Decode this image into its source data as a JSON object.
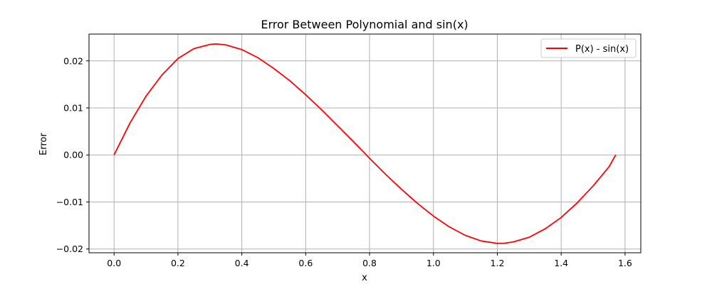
{
  "chart_data": {
    "type": "line",
    "title": "Error Between Polynomial and sin(x)",
    "xlabel": "x",
    "ylabel": "Error",
    "xlim": [
      -0.0785,
      1.6493
    ],
    "ylim": [
      -0.0208,
      0.0257
    ],
    "xticks": [
      0.0,
      0.2,
      0.4,
      0.6,
      0.8,
      1.0,
      1.2,
      1.4,
      1.6
    ],
    "xtick_labels": [
      "0.0",
      "0.2",
      "0.4",
      "0.6",
      "0.8",
      "1.0",
      "1.2",
      "1.4",
      "1.6"
    ],
    "yticks": [
      -0.02,
      -0.01,
      0.0,
      0.01,
      0.02
    ],
    "ytick_labels": [
      "−0.02",
      "−0.01",
      "0.00",
      "0.01",
      "0.02"
    ],
    "grid": true,
    "legend_position": "top-right",
    "series": [
      {
        "name": "P(x) - sin(x)",
        "color": "#ff0000",
        "x": [
          0.0,
          0.05,
          0.1,
          0.15,
          0.2,
          0.25,
          0.3,
          0.32,
          0.35,
          0.4,
          0.45,
          0.5,
          0.55,
          0.6,
          0.65,
          0.7,
          0.75,
          0.8,
          0.85,
          0.9,
          0.95,
          1.0,
          1.05,
          1.1,
          1.15,
          1.2,
          1.22,
          1.25,
          1.3,
          1.35,
          1.4,
          1.45,
          1.5,
          1.55,
          1.5708
        ],
        "y": [
          0.0,
          0.0068,
          0.0125,
          0.017,
          0.0205,
          0.0226,
          0.0235,
          0.0236,
          0.0234,
          0.0224,
          0.0207,
          0.0184,
          0.0158,
          0.0128,
          0.0096,
          0.0062,
          0.0028,
          -0.0007,
          -0.0041,
          -0.0073,
          -0.0103,
          -0.013,
          -0.0153,
          -0.0171,
          -0.0183,
          -0.0188,
          -0.0188,
          -0.0185,
          -0.0175,
          -0.0157,
          -0.0133,
          -0.0102,
          -0.0066,
          -0.0025,
          0.0
        ]
      }
    ]
  }
}
